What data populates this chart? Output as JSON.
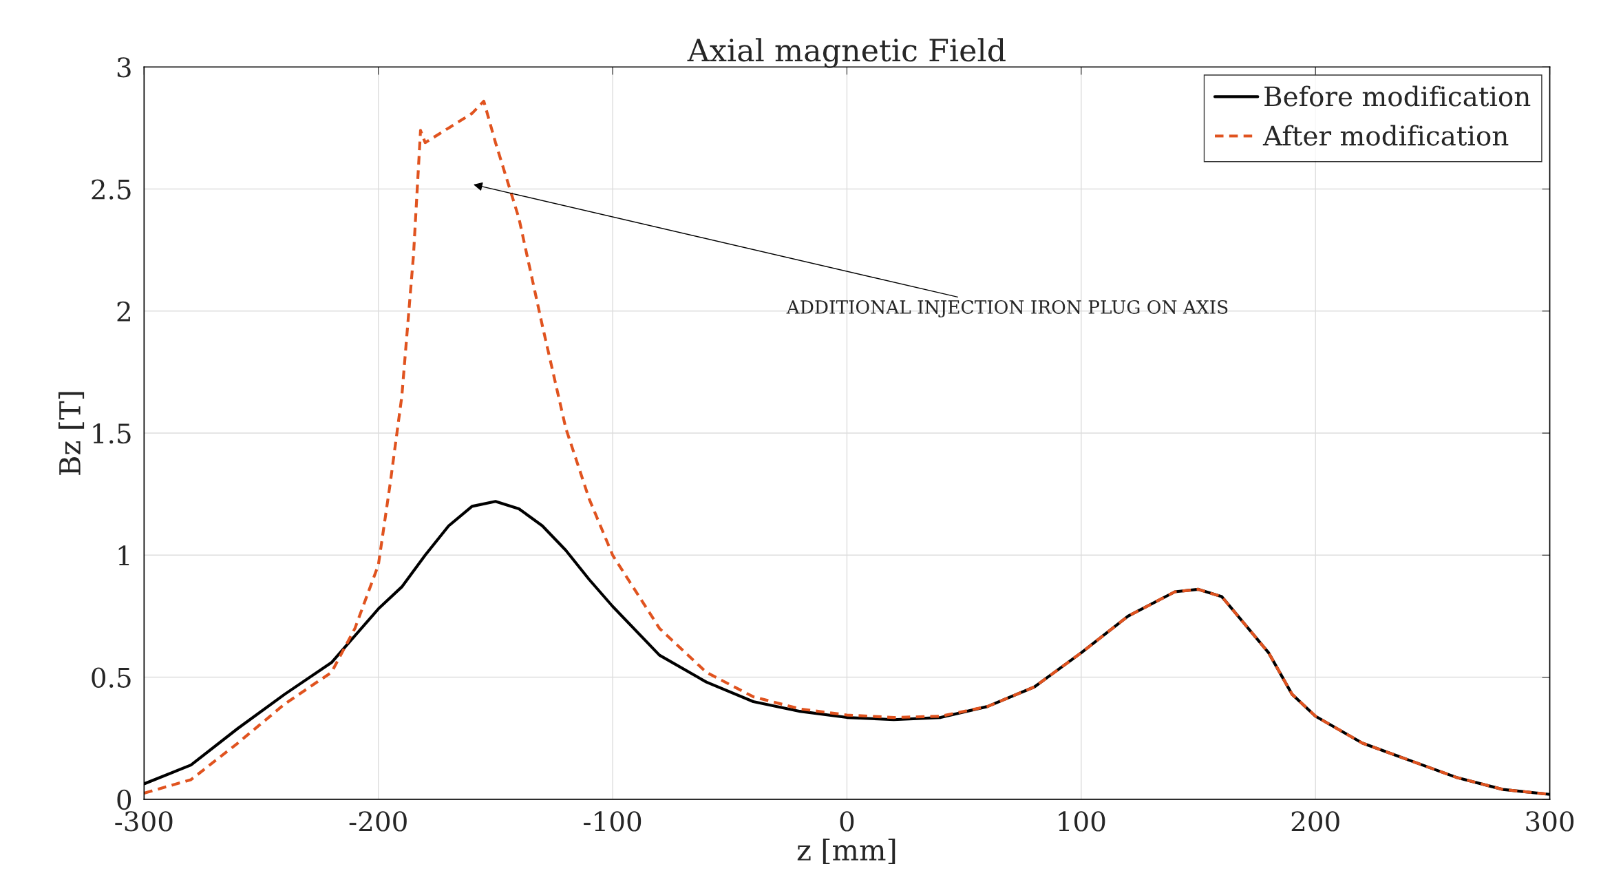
{
  "chart_data": {
    "type": "line",
    "title": "Axial magnetic Field",
    "xlabel": "z [mm]",
    "ylabel": "Bz [T]",
    "xlim": [
      -300,
      300
    ],
    "ylim": [
      0,
      3
    ],
    "xticks": [
      -300,
      -200,
      -100,
      0,
      100,
      200,
      300
    ],
    "yticks": [
      0,
      0.5,
      1,
      1.5,
      2,
      2.5,
      3
    ],
    "grid": true,
    "legend": "top right",
    "marker": "none",
    "annotations": [
      "ADDITIONAL INJECTION IRON PLUG ON AXIS"
    ],
    "series": [
      {
        "name": "Before modification",
        "color": "#000000",
        "line_style": "solid",
        "x": [
          -300,
          -280,
          -260,
          -240,
          -220,
          -200,
          -190,
          -180,
          -170,
          -160,
          -150,
          -140,
          -130,
          -120,
          -110,
          -100,
          -80,
          -60,
          -40,
          -20,
          0,
          20,
          40,
          60,
          80,
          100,
          120,
          140,
          150,
          160,
          180,
          190,
          200,
          220,
          240,
          260,
          280,
          300
        ],
        "values": [
          0.063,
          0.14,
          0.29,
          0.43,
          0.56,
          0.78,
          0.87,
          1.0,
          1.12,
          1.2,
          1.22,
          1.19,
          1.12,
          1.02,
          0.9,
          0.79,
          0.59,
          0.48,
          0.4,
          0.36,
          0.335,
          0.326,
          0.335,
          0.38,
          0.46,
          0.6,
          0.75,
          0.85,
          0.86,
          0.83,
          0.6,
          0.43,
          0.34,
          0.23,
          0.16,
          0.09,
          0.04,
          0.02
        ]
      },
      {
        "name": "After modification",
        "color": "#e0531f",
        "line_style": "dashed",
        "x": [
          -300,
          -280,
          -260,
          -240,
          -220,
          -210,
          -200,
          -195,
          -190,
          -185,
          -182,
          -180,
          -170,
          -160,
          -155,
          -150,
          -140,
          -130,
          -120,
          -110,
          -100,
          -80,
          -60,
          -40,
          -20,
          0,
          20,
          40,
          60,
          80,
          100,
          120,
          140,
          150,
          160,
          180,
          190,
          200,
          220,
          240,
          260,
          280,
          300
        ],
        "values": [
          0.025,
          0.08,
          0.23,
          0.39,
          0.52,
          0.7,
          0.96,
          1.29,
          1.65,
          2.23,
          2.74,
          2.69,
          2.75,
          2.81,
          2.86,
          2.69,
          2.38,
          1.94,
          1.52,
          1.23,
          1.0,
          0.7,
          0.52,
          0.42,
          0.37,
          0.345,
          0.335,
          0.34,
          0.38,
          0.46,
          0.6,
          0.75,
          0.85,
          0.86,
          0.83,
          0.6,
          0.43,
          0.34,
          0.23,
          0.16,
          0.09,
          0.04,
          0.02
        ]
      }
    ]
  }
}
